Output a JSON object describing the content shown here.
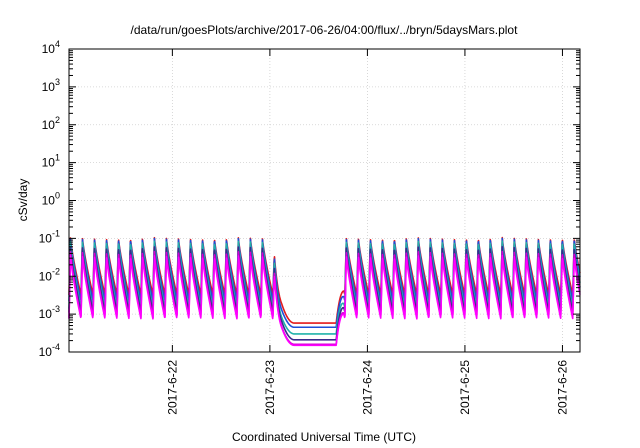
{
  "chart_data": {
    "type": "line",
    "title": "/data/run/goesPlots/archive/2017-06-26/04:00/flux/../bryn/5daysMars.plot",
    "xlabel": "Coordinated Universal Time (UTC)",
    "ylabel": "cSv/day",
    "yscale": "log",
    "ylim": [
      0.0001,
      10000
    ],
    "xlim": [
      -1.06,
      4.18
    ],
    "x_units": "days relative to 2017-06-22 00:00 UTC",
    "grid": true,
    "legend": "none",
    "x_ticks": [
      {
        "value": 0,
        "label": "2017-6-22"
      },
      {
        "value": 1,
        "label": "2017-6-23"
      },
      {
        "value": 2,
        "label": "2017-6-24"
      },
      {
        "value": 3,
        "label": "2017-6-25"
      },
      {
        "value": 4,
        "label": "2017-6-26"
      }
    ],
    "y_ticks": [
      {
        "value": 0.0001,
        "base": "10",
        "exp": "-4"
      },
      {
        "value": 0.001,
        "base": "10",
        "exp": "-3"
      },
      {
        "value": 0.01,
        "base": "10",
        "exp": "-2"
      },
      {
        "value": 0.1,
        "base": "10",
        "exp": "-1"
      },
      {
        "value": 1,
        "base": "10",
        "exp": "0"
      },
      {
        "value": 10,
        "base": "10",
        "exp": "1"
      },
      {
        "value": 100,
        "base": "10",
        "exp": "2"
      },
      {
        "value": 1000,
        "base": "10",
        "exp": "3"
      },
      {
        "value": 10000,
        "base": "10",
        "exp": "4"
      }
    ],
    "periodic_model": {
      "period_days": 0.123,
      "phase_start": -1.06,
      "ramp_fraction": 0.12
    },
    "dip": {
      "start": 1.02,
      "steep_end": 1.12,
      "floor_start": 1.25,
      "floor_end": 1.68,
      "recover_end": 1.76
    },
    "series": [
      {
        "color": "#e41a1c",
        "peak": 0.105,
        "trough": 0.0032,
        "floor": 0.00058
      },
      {
        "color": "#1f4ed8",
        "peak": 0.1,
        "trough": 0.0022,
        "floor": 0.00045
      },
      {
        "color": "#20b2aa",
        "peak": 0.085,
        "trough": 0.0014,
        "floor": 0.0003
      },
      {
        "color": "#3b2a8c",
        "peak": 0.06,
        "trough": 0.0011,
        "floor": 0.00021
      },
      {
        "color": "#d400d4",
        "peak": 0.045,
        "trough": 0.0008,
        "floor": 0.00016
      },
      {
        "color": "#ff00ff",
        "peak": 0.035,
        "trough": 0.00075,
        "floor": 0.00015
      }
    ]
  }
}
